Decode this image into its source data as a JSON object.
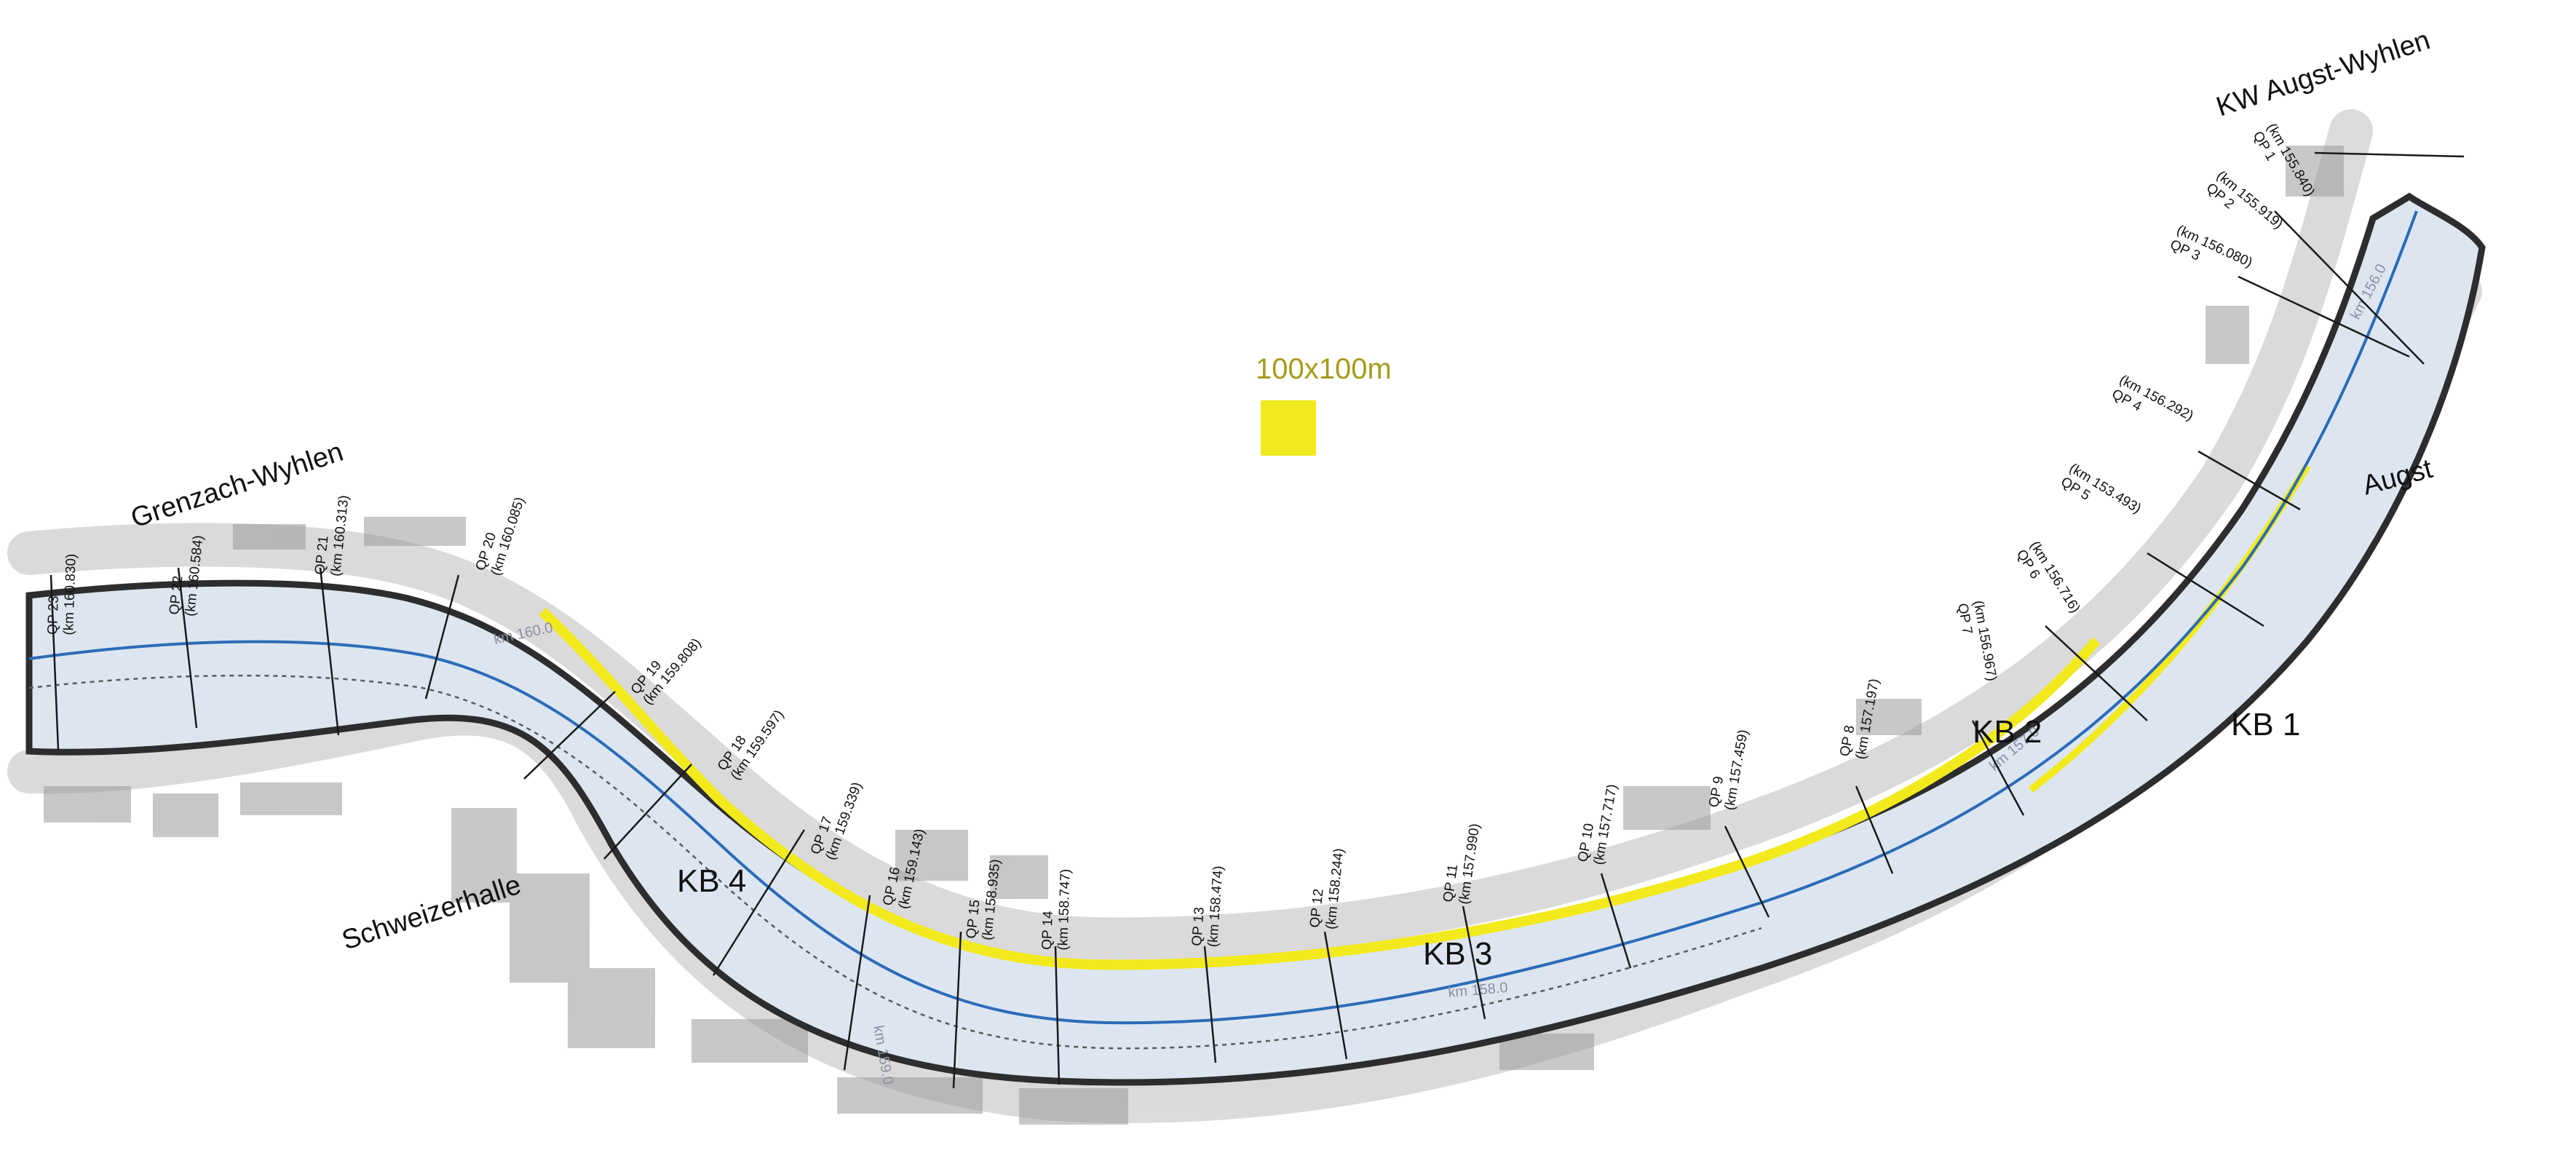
{
  "places": {
    "grenzach": "Grenzach-Wyhlen",
    "schweizerhalle": "Schweizerhalle",
    "augst": "Augst",
    "kw": "KW Augst-Wyhlen"
  },
  "sections": {
    "kb1": "KB 1",
    "kb2": "KB 2",
    "kb3": "KB 3",
    "kb4": "KB 4"
  },
  "scale": {
    "label": "100x100m",
    "color": "#f2ea1c"
  },
  "colors": {
    "river": "#dde6f0",
    "bank": "#2d2d2d",
    "thalweg": "#2b6cb8",
    "highlight": "#f2ea1c",
    "terrain": "#b9b9b9"
  },
  "profiles": [
    {
      "qp": "QP 1",
      "km": "(km 155.840)"
    },
    {
      "qp": "QP 2",
      "km": "(km 155.919)"
    },
    {
      "qp": "QP 3",
      "km": "(km 156.080)"
    },
    {
      "qp": "QP 4",
      "km": "(km 156.292)"
    },
    {
      "qp": "QP 5",
      "km": "(km 153.493)"
    },
    {
      "qp": "QP 6",
      "km": "(km 156.716)"
    },
    {
      "qp": "QP 7",
      "km": "(km 156.967)"
    },
    {
      "qp": "QP 8",
      "km": "(km 157.197)"
    },
    {
      "qp": "QP 9",
      "km": "(km 157.459)"
    },
    {
      "qp": "QP 10",
      "km": "(km 157.717)"
    },
    {
      "qp": "QP 11",
      "km": "(km 157.990)"
    },
    {
      "qp": "QP 12",
      "km": "(km 158.244)"
    },
    {
      "qp": "QP 13",
      "km": "(km 158.474)"
    },
    {
      "qp": "QP 14",
      "km": "(km 158.747)"
    },
    {
      "qp": "QP 15",
      "km": "(km 158.935)"
    },
    {
      "qp": "QP 16",
      "km": "(km 159.143)"
    },
    {
      "qp": "QP 17",
      "km": "(km 159.339)"
    },
    {
      "qp": "QP 18",
      "km": "(km 159.597)"
    },
    {
      "qp": "QP 19",
      "km": "(km 159.808)"
    },
    {
      "qp": "QP 20",
      "km": "(km 160.085)"
    },
    {
      "qp": "QP 21",
      "km": "(km 160.313)"
    },
    {
      "qp": "QP 22",
      "km": "(km 160.584)"
    },
    {
      "qp": "QP 23",
      "km": "(km 160.830)"
    }
  ],
  "river_km_labels": [
    "km 156.0",
    "km 157.0",
    "km 158.0",
    "km 159.0",
    "km 160.0"
  ]
}
